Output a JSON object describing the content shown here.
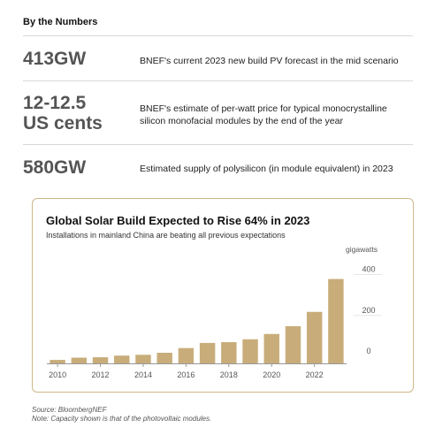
{
  "header": {
    "title": "By the Numbers"
  },
  "stats": [
    {
      "value_lines": [
        "413GW"
      ],
      "description_lines": [
        "BNEF's current 2023 new build PV forecast in the mid scenario"
      ]
    },
    {
      "value_lines": [
        "12-12.5",
        "US cents"
      ],
      "description_lines": [
        "BNEF's estimate of per-watt price for typical monocrystalline",
        "silicon monofacial modules by the end of the year"
      ]
    },
    {
      "value_lines": [
        "580GW"
      ],
      "description_lines": [
        "Estimated supply of polysilicon (in module equivalent) in 2023"
      ]
    }
  ],
  "colors": {
    "bar": "#c8ad7a",
    "border": "#cdb88a",
    "grid": "#e6e6e6",
    "axis": "#999999"
  },
  "chart_data": {
    "type": "bar",
    "title": "Global Solar Build Expected to Rise 64% in 2023",
    "subtitle": "Installations in mainland China are beating all previous expectations",
    "ylabel": "gigawatts",
    "ylim": [
      0,
      450
    ],
    "yticks": [
      0,
      200,
      400
    ],
    "x": [
      2010,
      2011,
      2012,
      2013,
      2014,
      2015,
      2016,
      2017,
      2018,
      2019,
      2020,
      2021,
      2022,
      2023
    ],
    "xtick_labels": [
      "2010",
      "2012",
      "2014",
      "2016",
      "2018",
      "2020",
      "2022"
    ],
    "xtick_values": [
      2010,
      2012,
      2014,
      2016,
      2018,
      2020,
      2022
    ],
    "values": [
      17,
      28,
      30,
      38,
      42,
      52,
      75,
      100,
      104,
      118,
      144,
      182,
      252,
      413
    ],
    "grid": true
  },
  "source": {
    "line1": "Source: BloombergNEF",
    "line2": "Note: Capacity shown is that of the photovoltaic modules."
  }
}
